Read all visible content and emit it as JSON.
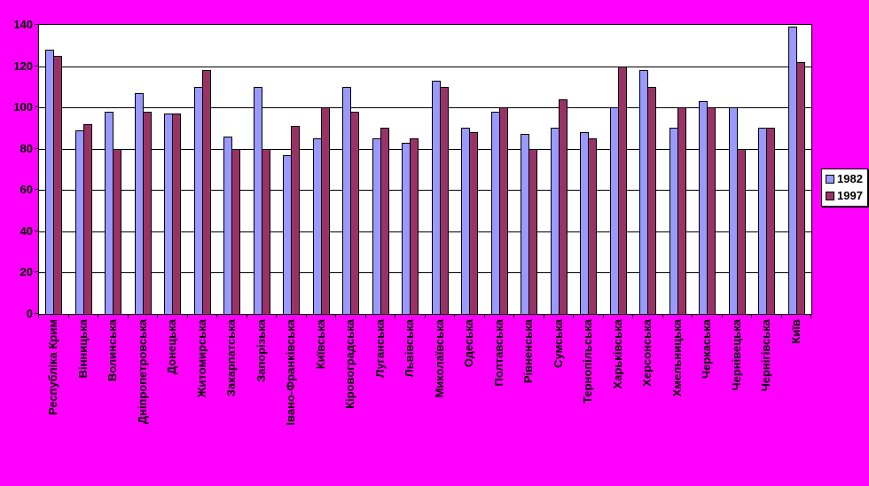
{
  "colors": {
    "background": "#FF00FF",
    "plot_background": "#FFFFFF",
    "grid": "#000000",
    "series_1982": "#9999FF",
    "series_1997": "#993366"
  },
  "chart_data": {
    "type": "bar",
    "title": "",
    "xlabel": "",
    "ylabel": "",
    "ylim": [
      0,
      140
    ],
    "yticks": [
      0,
      20,
      40,
      60,
      80,
      100,
      120,
      140
    ],
    "grid": true,
    "legend_position": "right",
    "categories": [
      "Республіка Крим",
      "Вінницька",
      "Волинська",
      "Дніпропетровська",
      "Донецька",
      "Житомирська",
      "Закарпатська",
      "Запорізька",
      "Івано-Франківська",
      "Київська",
      "Кіровоградська",
      "Луганська",
      "Львівська",
      "Миколаївська",
      "Одеська",
      "Полтавська",
      "Рівненська",
      "Сумська",
      "Тернопільська",
      "Харьківська",
      "Херсонська",
      "Хмельницька",
      "Черкаська",
      "Чернівецька",
      "Чернігівська",
      "Київ"
    ],
    "series": [
      {
        "name": "1982",
        "color": "#9999FF",
        "values": [
          128,
          89,
          98,
          107,
          97,
          110,
          86,
          110,
          77,
          85,
          110,
          85,
          83,
          113,
          90,
          98,
          87,
          90,
          88,
          100,
          118,
          90,
          103,
          100,
          90,
          139
        ]
      },
      {
        "name": "1997",
        "color": "#993366",
        "values": [
          125,
          92,
          80,
          98,
          97,
          118,
          80,
          80,
          91,
          100,
          98,
          90,
          85,
          110,
          88,
          100,
          80,
          104,
          85,
          120,
          110,
          100,
          100,
          80,
          90,
          122
        ]
      }
    ]
  },
  "legend": {
    "items": [
      {
        "label": "1982",
        "color": "#9999FF"
      },
      {
        "label": "1997",
        "color": "#993366"
      }
    ]
  }
}
